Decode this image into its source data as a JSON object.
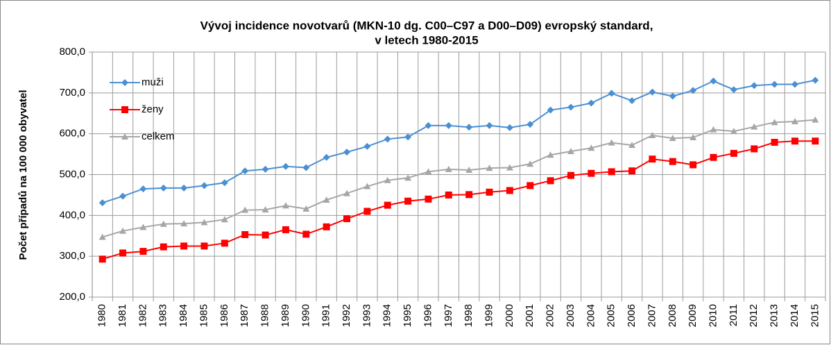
{
  "chart_data": {
    "type": "line",
    "title": [
      "Vývoj incidence novotvarů (MKN-10 dg. C00–C97 a D00–D09) evropský standard,",
      "v letech 1980-2015"
    ],
    "y_label": "Počet případů na 100 000 obyvatel",
    "categories": [
      "1980",
      "1981",
      "1982",
      "1983",
      "1984",
      "1985",
      "1986",
      "1987",
      "1988",
      "1989",
      "1990",
      "1991",
      "1992",
      "1993",
      "1994",
      "1995",
      "1996",
      "1997",
      "1998",
      "1999",
      "2000",
      "2001",
      "2002",
      "2003",
      "2004",
      "2005",
      "2006",
      "2007",
      "2008",
      "2009",
      "2010",
      "2011",
      "2012",
      "2013",
      "2014",
      "2015"
    ],
    "series": [
      {
        "name": "muži",
        "color": "#4a8fd2",
        "marker": "diamond",
        "values": [
          431,
          447,
          465,
          467,
          467,
          473,
          480,
          509,
          513,
          520,
          517,
          542,
          555,
          569,
          587,
          592,
          620,
          620,
          616,
          620,
          615,
          623,
          658,
          665,
          675,
          699,
          681,
          702,
          692,
          706,
          729,
          708,
          718,
          721,
          721,
          731
        ]
      },
      {
        "name": "ženy",
        "color": "#ff0000",
        "marker": "square",
        "values": [
          293,
          308,
          312,
          323,
          325,
          325,
          332,
          353,
          352,
          365,
          354,
          372,
          392,
          410,
          425,
          435,
          440,
          450,
          451,
          457,
          461,
          473,
          485,
          498,
          503,
          507,
          509,
          538,
          532,
          524,
          542,
          552,
          563,
          579,
          582,
          582
        ]
      },
      {
        "name": "celkem",
        "color": "#a6a6a6",
        "marker": "triangle",
        "values": [
          347,
          362,
          371,
          379,
          380,
          383,
          390,
          413,
          414,
          424,
          416,
          438,
          454,
          471,
          486,
          492,
          507,
          513,
          511,
          516,
          517,
          526,
          548,
          557,
          565,
          578,
          572,
          596,
          589,
          591,
          610,
          606,
          617,
          628,
          630,
          634
        ]
      }
    ],
    "ylim": [
      200,
      800
    ],
    "yticks": [
      {
        "value": 200,
        "label": "200,0"
      },
      {
        "value": 300,
        "label": "300,0"
      },
      {
        "value": 400,
        "label": "400,0"
      },
      {
        "value": 500,
        "label": "500,0"
      },
      {
        "value": 600,
        "label": "600,0"
      },
      {
        "value": 700,
        "label": "700,0"
      },
      {
        "value": 800,
        "label": "800,0"
      }
    ],
    "grid": true,
    "legend": "upper left"
  }
}
